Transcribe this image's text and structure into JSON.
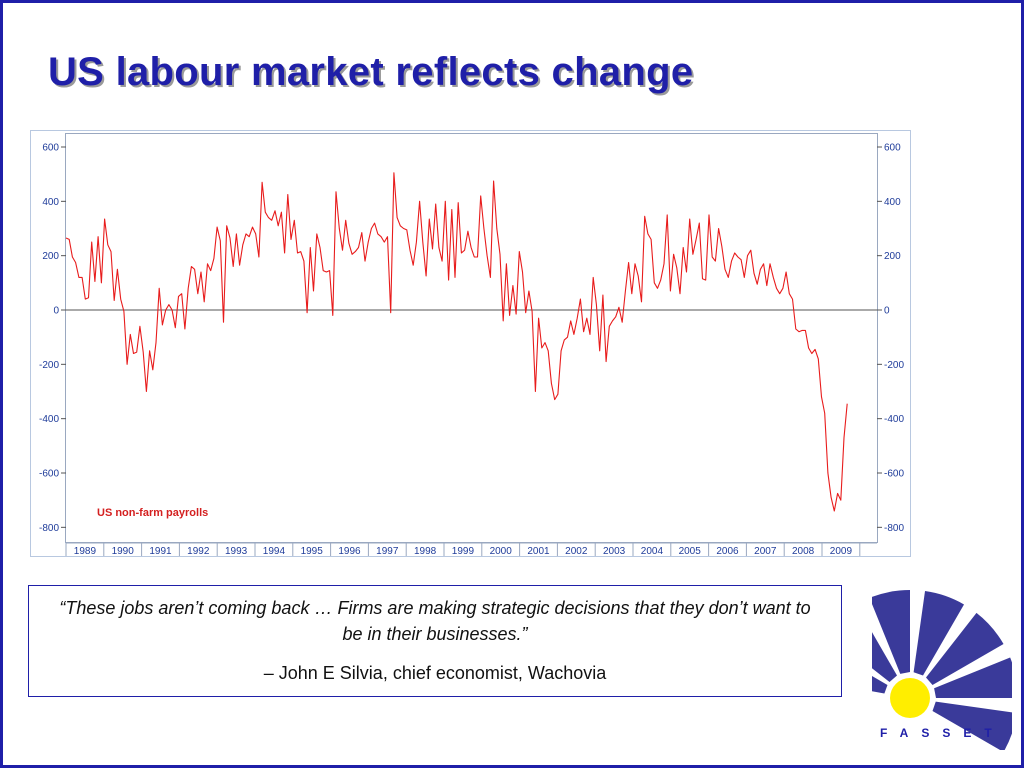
{
  "slide": {
    "title": "US labour market reflects change"
  },
  "quote": {
    "text": "“These jobs aren’t coming back … Firms are making strategic decisions that they don’t want to be in their businesses.”",
    "attribution": "– John E Silvia, chief economist, Wachovia"
  },
  "logo": {
    "text": "FASSET",
    "colors": {
      "blue": "#3a3a9a",
      "yellow": "#ffee00"
    }
  },
  "chart_data": {
    "type": "line",
    "series_label": "US non-farm payrolls",
    "color": "#e81c1c",
    "ylim": [
      -850,
      600
    ],
    "yticks": [
      600,
      400,
      200,
      0,
      -200,
      -400,
      -600,
      -800
    ],
    "ytick_labels": [
      "600",
      "400",
      "200",
      "0",
      "-200",
      "-400",
      "-600",
      "-800"
    ],
    "x_range": [
      "1989-01",
      "2009-09"
    ],
    "x_tick_labels": [
      "1989",
      "1990",
      "1991",
      "1992",
      "1993",
      "1994",
      "1995",
      "1996",
      "1997",
      "1998",
      "1999",
      "2000",
      "2001",
      "2002",
      "2003",
      "2004",
      "2005",
      "2006",
      "2007",
      "2008",
      "2009"
    ],
    "grid": false,
    "zero_line": true,
    "values": [
      265,
      260,
      195,
      175,
      120,
      120,
      40,
      45,
      250,
      105,
      270,
      100,
      335,
      240,
      215,
      35,
      150,
      40,
      -5,
      -200,
      -90,
      -160,
      -155,
      -60,
      -155,
      -300,
      -150,
      -220,
      -120,
      80,
      -55,
      0,
      20,
      0,
      -65,
      50,
      60,
      -70,
      80,
      160,
      150,
      60,
      140,
      30,
      170,
      145,
      190,
      305,
      255,
      -45,
      310,
      265,
      160,
      280,
      165,
      240,
      280,
      270,
      305,
      280,
      195,
      470,
      360,
      340,
      330,
      365,
      310,
      360,
      210,
      425,
      260,
      330,
      210,
      215,
      180,
      -10,
      230,
      70,
      280,
      230,
      145,
      140,
      145,
      -20,
      435,
      300,
      220,
      330,
      245,
      205,
      215,
      230,
      285,
      180,
      250,
      300,
      320,
      280,
      270,
      250,
      270,
      -10,
      505,
      340,
      310,
      300,
      295,
      220,
      165,
      250,
      400,
      250,
      125,
      335,
      225,
      390,
      230,
      180,
      400,
      110,
      370,
      120,
      395,
      210,
      220,
      290,
      230,
      195,
      195,
      420,
      300,
      200,
      120,
      475,
      300,
      205,
      -40,
      170,
      -20,
      90,
      -15,
      215,
      140,
      -10,
      70,
      -5,
      -300,
      -30,
      -140,
      -120,
      -150,
      -270,
      -330,
      -310,
      -150,
      -110,
      -100,
      -40,
      -90,
      -30,
      40,
      -80,
      -30,
      -90,
      120,
      20,
      -150,
      55,
      -190,
      -60,
      -40,
      -25,
      10,
      -45,
      70,
      175,
      60,
      170,
      125,
      30,
      345,
      280,
      260,
      100,
      80,
      110,
      170,
      350,
      70,
      205,
      155,
      60,
      230,
      140,
      335,
      205,
      260,
      320,
      115,
      110,
      350,
      195,
      180,
      300,
      235,
      150,
      120,
      180,
      210,
      195,
      185,
      120,
      200,
      220,
      135,
      95,
      150,
      170,
      90,
      170,
      120,
      80,
      60,
      80,
      140,
      60,
      40,
      -70,
      -80,
      -75,
      -75,
      -140,
      -160,
      -145,
      -180,
      -320,
      -380,
      -600,
      -690,
      -740,
      -675,
      -700,
      -470,
      -345
    ]
  }
}
